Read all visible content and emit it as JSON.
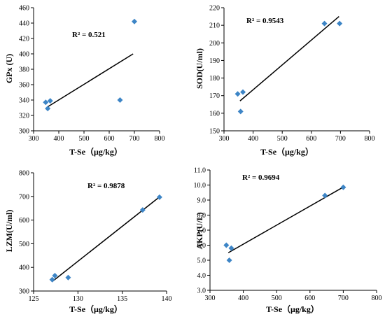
{
  "figure": {
    "marker_color": "#3D85C6",
    "line_color": "#000000"
  },
  "chart_data": [
    {
      "type": "scatter",
      "title": "",
      "xlabel": "T-Se（μg/kg）",
      "ylabel": "GPx (U)",
      "xlim": [
        300,
        800
      ],
      "ylim": [
        300,
        460
      ],
      "xticks": [
        "300",
        "400",
        "500",
        "600",
        "700",
        "800"
      ],
      "yticks": [
        "300",
        "320",
        "340",
        "360",
        "380",
        "400",
        "420",
        "440",
        "460"
      ],
      "x": [
        348,
        356,
        366,
        643,
        700
      ],
      "y": [
        337,
        329,
        339,
        340,
        442
      ],
      "trendline": {
        "x": [
          355,
          695
        ],
        "y": [
          331,
          400
        ]
      },
      "annotation": "R² = 0.521",
      "grid": false,
      "legend": "none"
    },
    {
      "type": "scatter",
      "title": "",
      "xlabel": "T-Se（μg/kg）",
      "ylabel": "SOD(U/ml)",
      "xlim": [
        300,
        800
      ],
      "ylim": [
        150,
        220
      ],
      "xticks": [
        "300",
        "400",
        "500",
        "600",
        "700",
        "800"
      ],
      "yticks": [
        "150",
        "160",
        "170",
        "180",
        "190",
        "200",
        "210",
        "220"
      ],
      "x": [
        347,
        357,
        365,
        645,
        697
      ],
      "y": [
        171,
        161,
        172,
        211,
        211
      ],
      "trendline": {
        "x": [
          355,
          695
        ],
        "y": [
          167,
          215
        ]
      },
      "annotation": "R² = 0.9543",
      "grid": false,
      "legend": "none"
    },
    {
      "type": "scatter",
      "title": "",
      "xlabel": "T-Se（μg/kg）",
      "ylabel": "LZM(U/ml)",
      "xlim": [
        125,
        140
      ],
      "ylim": [
        300,
        800
      ],
      "xticks": [
        "125",
        "130",
        "135",
        "140"
      ],
      "yticks": [
        "300",
        "400",
        "500",
        "600",
        "700",
        "800"
      ],
      "x": [
        127.1,
        127.4,
        128.9,
        137.3,
        139.2
      ],
      "y": [
        348,
        365,
        357,
        643,
        697
      ],
      "trendline": {
        "x": [
          127.1,
          139.2
        ],
        "y": [
          340,
          698
        ]
      },
      "annotation": "R² = 0.9878",
      "grid": false,
      "legend": "none"
    },
    {
      "type": "scatter",
      "title": "",
      "xlabel": "T-Se（μg/kg）",
      "ylabel": "AKP(U/L)",
      "xlim": [
        300,
        800
      ],
      "ylim": [
        3.0,
        11.0
      ],
      "xticks": [
        "300",
        "400",
        "500",
        "600",
        "700",
        "800"
      ],
      "yticks": [
        "3.0",
        "4.0",
        "5.0",
        "6.0",
        "7.0",
        "8.0",
        "9.0",
        "10.0",
        "11.0"
      ],
      "x": [
        349,
        358,
        364,
        645,
        700
      ],
      "y": [
        6.0,
        5.0,
        5.8,
        9.3,
        9.85
      ],
      "trendline": {
        "x": [
          355,
          695
        ],
        "y": [
          5.5,
          9.8
        ]
      },
      "annotation": "R² = 0.9694",
      "grid": false,
      "legend": "none"
    }
  ]
}
